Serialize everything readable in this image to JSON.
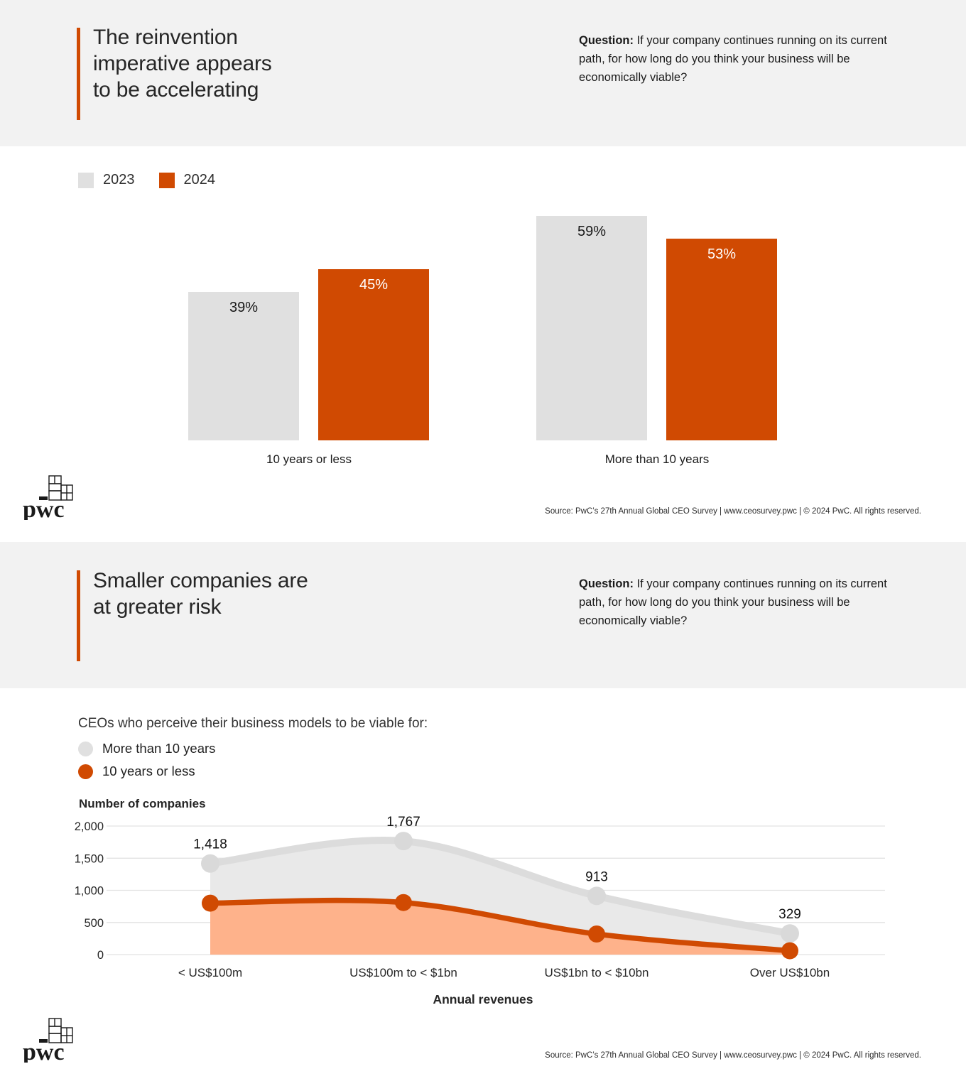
{
  "source_line": "Source: PwC’s 27th Annual Global CEO Survey  |  www.ceosurvey.pwc  |  © 2024 PwC. All rights reserved.",
  "brand": {
    "logo_text": "pwc",
    "orange": "#d04a02"
  },
  "section1": {
    "title": "The reinvention\nimperative appears\nto be accelerating",
    "question_label": "Question:",
    "question_text": " If your company continues running on its current path, for how long do you think your business will be economically viable?"
  },
  "section2": {
    "title": "Smaller companies are\nat greater risk",
    "question_label": "Question:",
    "question_text": " If your company continues running on its current path, for how long do you think your business will be economically viable?"
  },
  "chart_data": [
    {
      "type": "bar",
      "title": "The reinvention imperative appears to be accelerating",
      "legend": [
        {
          "label": "2023",
          "color": "#e0e0e0"
        },
        {
          "label": "2024",
          "color": "#d04a02"
        }
      ],
      "legend_position": "top-left",
      "categories": [
        "10 years or less",
        "More than 10 years"
      ],
      "series": [
        {
          "name": "2023",
          "color": "#e0e0e0",
          "values": [
            39,
            59
          ],
          "labels": [
            "39%",
            "59%"
          ],
          "label_color": "#1a1a1a"
        },
        {
          "name": "2024",
          "color": "#d04a02",
          "values": [
            45,
            53
          ],
          "labels": [
            "45%",
            "53%"
          ],
          "label_color": "#ffffff"
        }
      ],
      "unit": "%",
      "ylim": [
        0,
        100
      ],
      "grid": false
    },
    {
      "type": "area",
      "subtitle": "CEOs who perceive their business models to be viable for:",
      "legend": [
        {
          "label": "More than 10 years",
          "color": "#e0e0e0"
        },
        {
          "label": "10 years or less",
          "color": "#d04a02"
        }
      ],
      "legend_position": "top-left",
      "ylabel": "Number of companies",
      "xlabel": "Annual revenues",
      "categories": [
        "< US$100m",
        "US$100m to < $1bn",
        "US$1bn to < $10bn",
        "Over US$10bn"
      ],
      "series": [
        {
          "name": "More than 10 years",
          "values": [
            1418,
            1767,
            913,
            329
          ],
          "labels": [
            "1,418",
            "1,767",
            "913",
            "329"
          ],
          "fill": "#e9e9e9",
          "stroke": "#dcdcdc",
          "marker": "#d9d9d9"
        },
        {
          "name": "10 years or less",
          "values": [
            800,
            810,
            320,
            60
          ],
          "labels": [
            "",
            "",
            "",
            ""
          ],
          "fill": "#feb28b",
          "stroke": "#d04a02",
          "marker": "#d04a02"
        }
      ],
      "yticks": [
        {
          "value": 0,
          "label": "0"
        },
        {
          "value": 500,
          "label": "500"
        },
        {
          "value": 1000,
          "label": "1,000"
        },
        {
          "value": 1500,
          "label": "1,500"
        },
        {
          "value": 2000,
          "label": "2,000"
        }
      ],
      "ylim": [
        0,
        2000
      ],
      "grid": true
    }
  ]
}
